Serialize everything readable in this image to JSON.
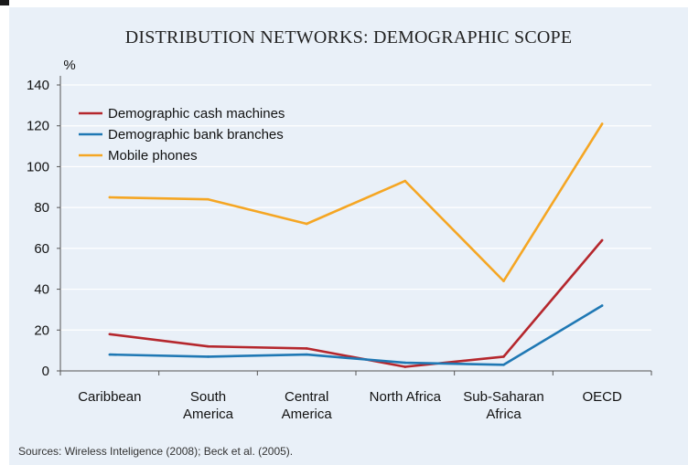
{
  "chart_data": {
    "type": "line",
    "title": "DISTRIBUTION NETWORKS: DEMOGRAPHIC SCOPE",
    "ylabel": "%",
    "xlabel": "",
    "ylim": [
      0,
      140
    ],
    "yticks": [
      0,
      20,
      40,
      60,
      80,
      100,
      120,
      140
    ],
    "categories": [
      [
        "Caribbean"
      ],
      [
        "South",
        "America"
      ],
      [
        "Central",
        "America"
      ],
      [
        "North Africa"
      ],
      [
        "Sub-Saharan",
        "Africa"
      ],
      [
        "OECD"
      ]
    ],
    "series": [
      {
        "name": "Demographic cash machines",
        "color": "#b5272d",
        "values": [
          18,
          12,
          11,
          2,
          7,
          64
        ]
      },
      {
        "name": "Demographic bank branches",
        "color": "#1f78b4",
        "values": [
          8,
          7,
          8,
          4,
          3,
          32
        ]
      },
      {
        "name": "Mobile phones",
        "color": "#f5a623",
        "values": [
          85,
          84,
          72,
          93,
          44,
          121
        ]
      }
    ],
    "grid": true,
    "legend_position": "top-left",
    "source": "Sources: Wireless Inteligence (2008); Beck et al. (2005)."
  }
}
